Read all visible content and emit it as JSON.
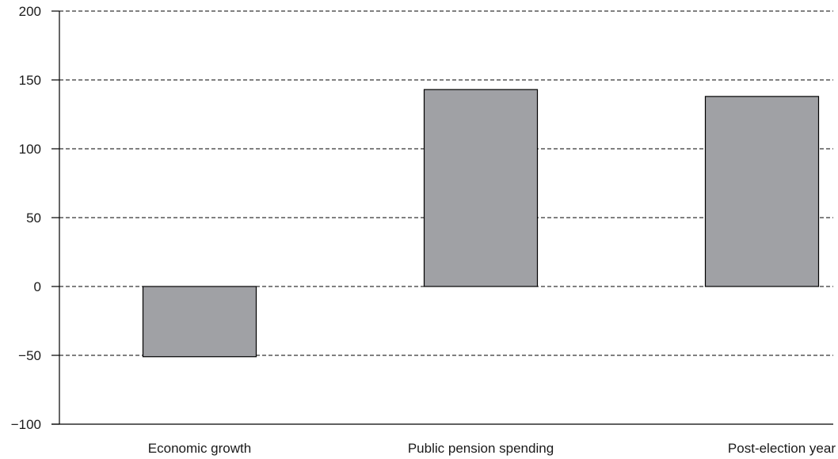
{
  "chart_data": {
    "type": "bar",
    "title": "",
    "xlabel": "",
    "ylabel": "",
    "categories": [
      "Economic growth",
      "Public pension spending",
      "Post-election year"
    ],
    "values": [
      -51,
      143,
      138
    ],
    "ylim": [
      -100,
      200
    ],
    "yticks": [
      200,
      150,
      100,
      50,
      0,
      -50,
      -100
    ],
    "ytick_labels": [
      "200",
      "150",
      "100",
      "50",
      "0",
      "−50",
      "−100"
    ],
    "grid": true,
    "grid_style": "dashed",
    "bar_color": "#a0a1a5",
    "bar_edge_color": "#000000"
  }
}
